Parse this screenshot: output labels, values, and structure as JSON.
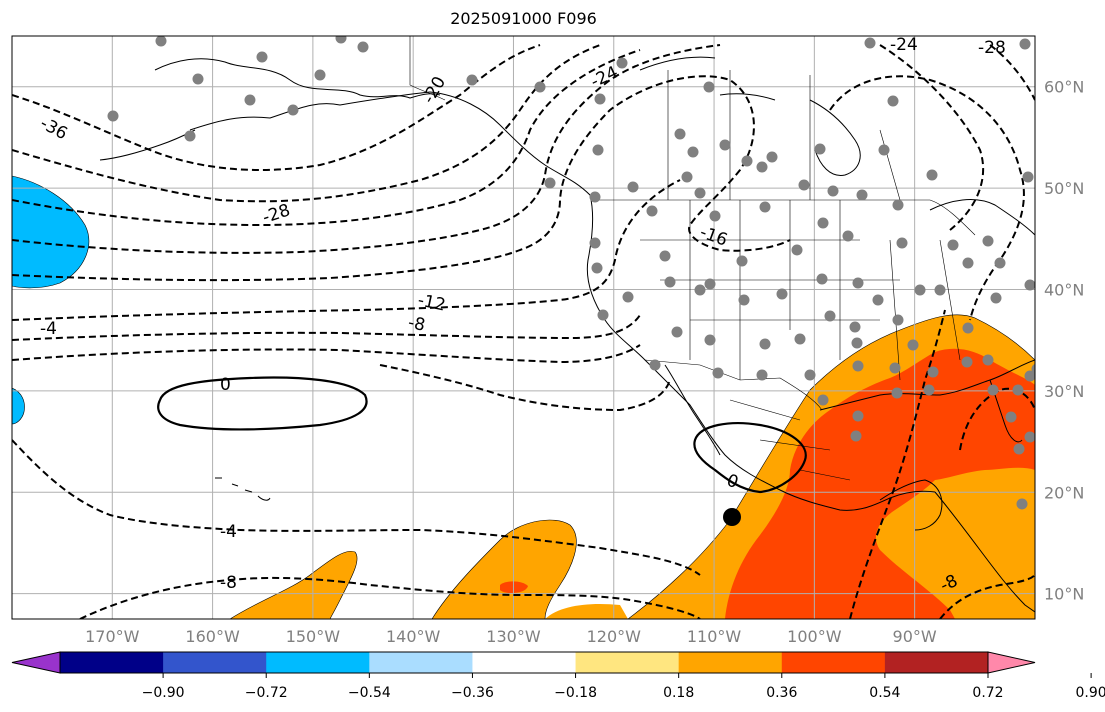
{
  "title": "2025091000 F096",
  "map": {
    "lon_range": [
      -180,
      -78
    ],
    "lat_range": [
      7.5,
      65
    ],
    "projection": "plate-carree",
    "grid": true,
    "lat_ticks": [
      {
        "value": 10,
        "label": "10°N"
      },
      {
        "value": 20,
        "label": "20°N"
      },
      {
        "value": 30,
        "label": "30°N"
      },
      {
        "value": 40,
        "label": "40°N"
      },
      {
        "value": 50,
        "label": "50°N"
      },
      {
        "value": 60,
        "label": "60°N"
      }
    ],
    "lon_ticks": [
      {
        "value": -170,
        "label": "170°W"
      },
      {
        "value": -160,
        "label": "160°W"
      },
      {
        "value": -150,
        "label": "150°W"
      },
      {
        "value": -140,
        "label": "140°W"
      },
      {
        "value": -130,
        "label": "130°W"
      },
      {
        "value": -120,
        "label": "120°W"
      },
      {
        "value": -110,
        "label": "110°W"
      },
      {
        "value": -100,
        "label": "100°W"
      },
      {
        "value": -90,
        "label": "90°W"
      }
    ],
    "contour_labels": [
      "-36",
      "-28",
      "-24",
      "-24",
      "-28",
      "-20",
      "-16",
      "-12",
      "-8",
      "-4",
      "0",
      "0",
      "-4",
      "-8",
      "-8"
    ],
    "marker": {
      "lon": -110,
      "lat": 18
    }
  },
  "colorbar": {
    "ticks": [
      "−0.90",
      "−0.72",
      "−0.54",
      "−0.36",
      "−0.18",
      "0.18",
      "0.36",
      "0.54",
      "0.72",
      "0.90"
    ],
    "colors": [
      "#9933cc",
      "#000088",
      "#3355cc",
      "#00bbff",
      "#aaddff",
      "#ffffff",
      "#ffe680",
      "#ffa500",
      "#ff4500",
      "#b22222",
      "#ff88aa"
    ]
  },
  "colors": {
    "orange": "#ffa500",
    "red_orange": "#ff4500",
    "sky_blue": "#00bbff",
    "station": "#808080",
    "grid": "#b0b0b0"
  }
}
